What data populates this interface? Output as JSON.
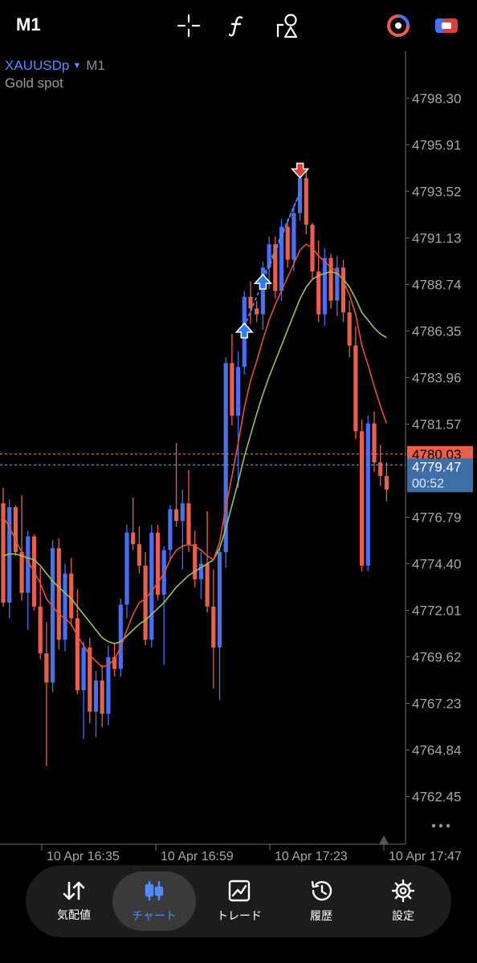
{
  "toolbar": {
    "timeframe": "M1",
    "icons": [
      "crosshair-icon",
      "indicator-function-icon",
      "objects-icon",
      "one-click-trading-icon",
      "account-toggle-icon"
    ]
  },
  "chart": {
    "symbol": "XAUUSDp",
    "timeframe": "M1",
    "description": "Gold spot",
    "price_labels": [
      "4798.30",
      "4795.91",
      "4793.52",
      "4791.13",
      "4788.74",
      "4786.35",
      "4783.96",
      "4781.57",
      "4776.79",
      "4774.40",
      "4772.01",
      "4769.62",
      "4767.23",
      "4764.84",
      "4762.45"
    ],
    "ask_price": "4780.03",
    "bid_price": "4779.47",
    "countdown": "00:52",
    "time_labels": [
      "10 Apr 16:35",
      "10 Apr 16:59",
      "10 Apr 17:23",
      "10 Apr 17:47"
    ],
    "more_icon": "more-horizontal-icon",
    "colors": {
      "bull": "#4a6ff0",
      "bear": "#e8604c",
      "ma_fast": "#e0533c",
      "ma_slow": "#9ac35a",
      "ask_line": "#e8604c",
      "bid_line": "#5b8fc7"
    }
  },
  "chart_data": {
    "type": "candlestick",
    "title": "",
    "xlabel": "",
    "ylabel": "",
    "ylim": [
      4760.0,
      4800.7
    ],
    "ohlc": [
      [
        4777.5,
        4778.3,
        4772.2,
        4772.4
      ],
      [
        4772.4,
        4777.7,
        4771.6,
        4777.3
      ],
      [
        4777.3,
        4777.4,
        4774.8,
        4775.0
      ],
      [
        4775.0,
        4777.9,
        4772.5,
        4772.9
      ],
      [
        4772.9,
        4776.1,
        4771.0,
        4775.8
      ],
      [
        4775.8,
        4775.9,
        4772.0,
        4772.2
      ],
      [
        4772.2,
        4774.2,
        4769.5,
        4769.8
      ],
      [
        4769.8,
        4771.4,
        4764.0,
        4768.3
      ],
      [
        4768.3,
        4775.6,
        4767.8,
        4775.2
      ],
      [
        4775.2,
        4775.7,
        4770.0,
        4770.5
      ],
      [
        4770.5,
        4774.4,
        4769.9,
        4773.9
      ],
      [
        4773.9,
        4774.7,
        4771.2,
        4771.6
      ],
      [
        4771.6,
        4773.1,
        4767.7,
        4767.9
      ],
      [
        4767.9,
        4770.4,
        4765.4,
        4770.1
      ],
      [
        4770.1,
        4770.6,
        4766.2,
        4766.8
      ],
      [
        4766.8,
        4768.9,
        4765.5,
        4768.4
      ],
      [
        4768.4,
        4769.2,
        4766.0,
        4766.7
      ],
      [
        4766.7,
        4770.2,
        4766.1,
        4769.6
      ],
      [
        4769.6,
        4770.3,
        4768.6,
        4769.0
      ],
      [
        4769.0,
        4772.6,
        4768.6,
        4772.3
      ],
      [
        4772.3,
        4776.4,
        4771.6,
        4776.0
      ],
      [
        4776.0,
        4777.8,
        4775.1,
        4775.4
      ],
      [
        4775.4,
        4776.3,
        4773.9,
        4774.3
      ],
      [
        4774.3,
        4775.0,
        4770.2,
        4770.5
      ],
      [
        4770.5,
        4776.4,
        4770.1,
        4776.0
      ],
      [
        4776.0,
        4776.4,
        4772.5,
        4772.8
      ],
      [
        4772.8,
        4775.3,
        4769.2,
        4775.1
      ],
      [
        4775.1,
        4777.4,
        4774.5,
        4777.2
      ],
      [
        4777.2,
        4780.6,
        4776.3,
        4776.6
      ],
      [
        4776.6,
        4778.2,
        4774.1,
        4777.5
      ],
      [
        4777.5,
        4779.2,
        4775.0,
        4775.4
      ],
      [
        4775.4,
        4776.1,
        4773.2,
        4773.6
      ],
      [
        4773.6,
        4775.0,
        4772.6,
        4774.4
      ],
      [
        4774.4,
        4777.1,
        4771.9,
        4772.2
      ],
      [
        4772.2,
        4774.1,
        4768.0,
        4770.1
      ],
      [
        4770.1,
        4775.2,
        4767.4,
        4775.0
      ],
      [
        4775.0,
        4785.0,
        4774.2,
        4784.7
      ],
      [
        4784.7,
        4786.2,
        4781.5,
        4782.0
      ],
      [
        4782.0,
        4785.3,
        4778.3,
        4784.5
      ],
      [
        4784.5,
        4788.4,
        4784.1,
        4788.1
      ],
      [
        4788.1,
        4788.9,
        4786.7,
        4787.5
      ],
      [
        4787.5,
        4787.9,
        4786.8,
        4787.2
      ],
      [
        4787.2,
        4789.9,
        4786.4,
        4789.6
      ],
      [
        4789.6,
        4791.2,
        4788.5,
        4790.8
      ],
      [
        4790.8,
        4791.2,
        4788.0,
        4788.4
      ],
      [
        4788.4,
        4792.1,
        4787.9,
        4791.7
      ],
      [
        4791.7,
        4792.1,
        4789.6,
        4790.0
      ],
      [
        4790.0,
        4792.8,
        4789.4,
        4792.4
      ],
      [
        4792.4,
        4794.7,
        4792.0,
        4794.2
      ],
      [
        4794.2,
        4794.6,
        4791.3,
        4791.8
      ],
      [
        4791.8,
        4791.9,
        4789.0,
        4789.4
      ],
      [
        4789.4,
        4791.0,
        4786.8,
        4787.2
      ],
      [
        4787.2,
        4790.6,
        4786.6,
        4790.1
      ],
      [
        4790.1,
        4790.3,
        4787.5,
        4787.9
      ],
      [
        4787.9,
        4790.2,
        4787.1,
        4789.6
      ],
      [
        4789.6,
        4790.0,
        4786.8,
        4787.3
      ],
      [
        4787.3,
        4787.9,
        4785.0,
        4785.6
      ],
      [
        4785.6,
        4786.6,
        4780.8,
        4781.2
      ],
      [
        4781.2,
        4781.8,
        4774.0,
        4774.3
      ],
      [
        4774.3,
        4782.0,
        4774.0,
        4781.6
      ],
      [
        4781.6,
        4782.2,
        4779.1,
        4779.6
      ],
      [
        4779.6,
        4780.5,
        4778.4,
        4778.9
      ],
      [
        4778.9,
        4779.6,
        4777.6,
        4778.2
      ]
    ],
    "series": [
      {
        "values": [
          4774.8,
          4774.9,
          4774.9,
          4774.8,
          4774.7,
          4774.6,
          4774.3,
          4773.9,
          4773.5,
          4773.2,
          4772.9,
          4772.6,
          4772.2,
          4771.8,
          4771.4,
          4771.0,
          4770.6,
          4770.4,
          4770.3,
          4770.4,
          4770.7,
          4771.0,
          4771.3,
          4771.5,
          4771.8,
          4772.1,
          4772.4,
          4772.8,
          4773.2,
          4773.5,
          4773.8,
          4774.0,
          4774.2,
          4774.4,
          4774.6,
          4775.2,
          4776.2,
          4777.4,
          4778.6,
          4779.9,
          4781.0,
          4782.1,
          4783.1,
          4784.0,
          4784.8,
          4785.6,
          4786.4,
          4787.2,
          4788.0,
          4788.6,
          4789.0,
          4789.2,
          4789.3,
          4789.4,
          4789.3,
          4789.0,
          4788.6,
          4788.0,
          4787.3,
          4786.9,
          4786.5,
          4786.2,
          4786.0
        ]
      },
      {
        "values": [
          4776.8,
          4776.3,
          4775.6,
          4775.0,
          4774.5,
          4774.0,
          4773.4,
          4772.6,
          4772.2,
          4771.8,
          4771.6,
          4771.3,
          4770.7,
          4770.2,
          4769.7,
          4769.4,
          4769.1,
          4769.2,
          4769.5,
          4770.1,
          4771.0,
          4771.8,
          4772.4,
          4772.6,
          4773.0,
          4773.4,
          4773.9,
          4774.6,
          4775.1,
          4775.3,
          4775.4,
          4775.3,
          4775.1,
          4774.8,
          4774.6,
          4775.5,
          4777.3,
          4778.9,
          4780.6,
          4782.4,
          4783.8,
          4784.8,
          4785.9,
          4786.9,
          4787.7,
          4788.4,
          4789.1,
          4789.8,
          4790.5,
          4790.8,
          4790.6,
          4790.2,
          4789.9,
          4789.6,
          4789.4,
          4788.9,
          4788.2,
          4787.2,
          4785.6,
          4784.6,
          4783.5,
          4782.5,
          4781.6
        ]
      }
    ],
    "markers": [
      {
        "type": "buy",
        "index": 39,
        "price": 4786.0
      },
      {
        "type": "buy",
        "index": 42,
        "price": 4788.5
      },
      {
        "type": "sell",
        "index": 48,
        "price": 4793.8
      }
    ]
  },
  "nav": {
    "items": [
      {
        "label": "気配値",
        "icon": "quotes-icon"
      },
      {
        "label": "チャート",
        "icon": "chart-candles-icon"
      },
      {
        "label": "トレード",
        "icon": "trade-icon"
      },
      {
        "label": "履歴",
        "icon": "history-icon"
      },
      {
        "label": "設定",
        "icon": "settings-icon"
      }
    ],
    "active_index": 1
  }
}
